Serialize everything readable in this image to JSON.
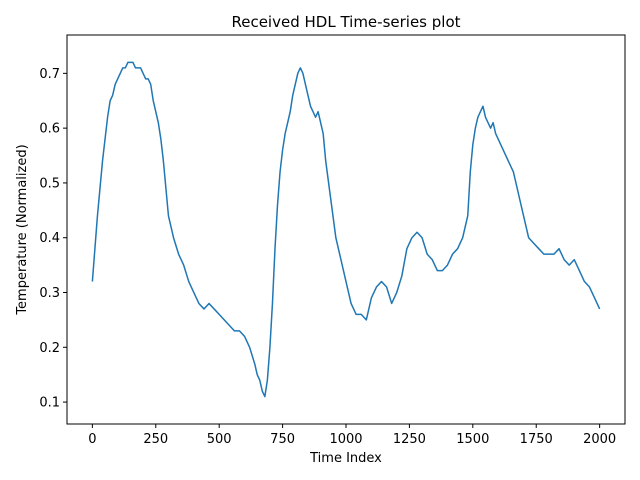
{
  "chart_data": {
    "type": "line",
    "title": "Received HDL Time-series plot",
    "xlabel": "Time Index",
    "ylabel": "Temperature (Normalized)",
    "xlim": [
      -100,
      2100
    ],
    "ylim": [
      0.06,
      0.77
    ],
    "xticks": [
      0,
      250,
      500,
      750,
      1000,
      1250,
      1500,
      1750,
      2000
    ],
    "xtick_labels": [
      "0",
      "250",
      "500",
      "750",
      "1000",
      "1250",
      "1500",
      "1750",
      "2000"
    ],
    "yticks": [
      0.1,
      0.2,
      0.3,
      0.4,
      0.5,
      0.6,
      0.7
    ],
    "ytick_labels": [
      "0.1",
      "0.2",
      "0.3",
      "0.4",
      "0.5",
      "0.6",
      "0.7"
    ],
    "grid": false,
    "legend": "none",
    "series": [
      {
        "color": "#1f77b4",
        "x": [
          0,
          10,
          20,
          30,
          40,
          50,
          60,
          70,
          80,
          90,
          100,
          110,
          120,
          130,
          140,
          150,
          160,
          170,
          180,
          190,
          200,
          210,
          220,
          230,
          240,
          250,
          260,
          270,
          280,
          290,
          300,
          320,
          340,
          360,
          380,
          400,
          420,
          440,
          460,
          480,
          500,
          520,
          540,
          560,
          580,
          600,
          620,
          640,
          650,
          660,
          670,
          680,
          690,
          700,
          710,
          720,
          730,
          740,
          750,
          760,
          770,
          780,
          790,
          800,
          810,
          820,
          830,
          840,
          850,
          860,
          870,
          880,
          890,
          900,
          910,
          920,
          940,
          960,
          980,
          1000,
          1020,
          1040,
          1060,
          1080,
          1100,
          1120,
          1140,
          1160,
          1180,
          1200,
          1220,
          1240,
          1260,
          1280,
          1300,
          1320,
          1340,
          1360,
          1380,
          1400,
          1420,
          1440,
          1460,
          1480,
          1490,
          1500,
          1510,
          1520,
          1530,
          1540,
          1550,
          1560,
          1570,
          1580,
          1590,
          1600,
          1620,
          1640,
          1660,
          1680,
          1700,
          1720,
          1740,
          1760,
          1780,
          1800,
          1820,
          1840,
          1860,
          1880,
          1900,
          1920,
          1940,
          1960,
          1980,
          2000
        ],
        "y": [
          0.32,
          0.38,
          0.44,
          0.49,
          0.54,
          0.58,
          0.62,
          0.65,
          0.66,
          0.68,
          0.69,
          0.7,
          0.71,
          0.71,
          0.72,
          0.72,
          0.72,
          0.71,
          0.71,
          0.71,
          0.7,
          0.69,
          0.69,
          0.68,
          0.65,
          0.63,
          0.61,
          0.58,
          0.54,
          0.49,
          0.44,
          0.4,
          0.37,
          0.35,
          0.32,
          0.3,
          0.28,
          0.27,
          0.28,
          0.27,
          0.26,
          0.25,
          0.24,
          0.23,
          0.23,
          0.22,
          0.2,
          0.17,
          0.15,
          0.14,
          0.12,
          0.11,
          0.14,
          0.2,
          0.28,
          0.38,
          0.46,
          0.52,
          0.56,
          0.59,
          0.61,
          0.63,
          0.66,
          0.68,
          0.7,
          0.71,
          0.7,
          0.68,
          0.66,
          0.64,
          0.63,
          0.62,
          0.63,
          0.61,
          0.59,
          0.54,
          0.47,
          0.4,
          0.36,
          0.32,
          0.28,
          0.26,
          0.26,
          0.25,
          0.29,
          0.31,
          0.32,
          0.31,
          0.28,
          0.3,
          0.33,
          0.38,
          0.4,
          0.41,
          0.4,
          0.37,
          0.36,
          0.34,
          0.34,
          0.35,
          0.37,
          0.38,
          0.4,
          0.44,
          0.52,
          0.57,
          0.6,
          0.62,
          0.63,
          0.64,
          0.62,
          0.61,
          0.6,
          0.61,
          0.59,
          0.58,
          0.56,
          0.54,
          0.52,
          0.48,
          0.44,
          0.4,
          0.39,
          0.38,
          0.37,
          0.37,
          0.37,
          0.38,
          0.36,
          0.35,
          0.36,
          0.34,
          0.32,
          0.31,
          0.29,
          0.27
        ]
      }
    ]
  }
}
